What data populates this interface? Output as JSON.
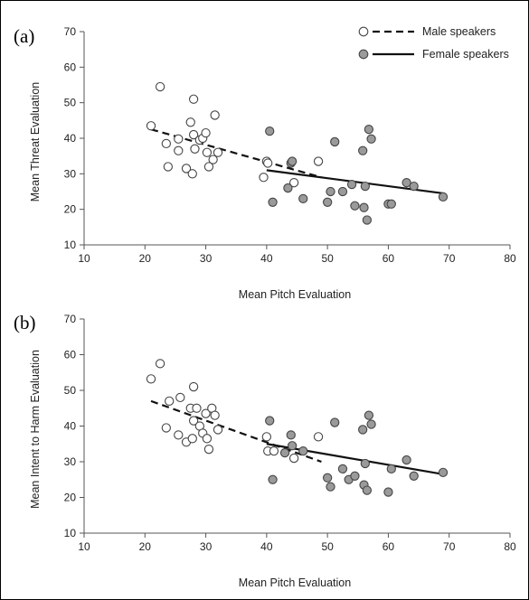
{
  "legend": {
    "male": "Male speakers",
    "female": "Female speakers",
    "colors": {
      "male_fill": "#ffffff",
      "female_fill": "#9a9a9a",
      "marker_stroke": "#444444",
      "line": "#111111"
    }
  },
  "chart_data": [
    {
      "type": "scatter",
      "panel_label": "(a)",
      "title": "",
      "xlabel": "Mean Pitch Evaluation",
      "ylabel": "Mean Threat Evaluation",
      "xlim": [
        10,
        80
      ],
      "ylim": [
        10,
        70
      ],
      "xticks": [
        "10",
        "20",
        "30",
        "40",
        "50",
        "60",
        "70",
        "80"
      ],
      "yticks": [
        "10",
        "20",
        "30",
        "40",
        "50",
        "60",
        "70"
      ],
      "grid": false,
      "legend_position": "top-right",
      "series": [
        {
          "name": "Male speakers",
          "marker": "open-circle",
          "points": [
            [
              21,
              43.5
            ],
            [
              22.5,
              54.5
            ],
            [
              23.5,
              38.5
            ],
            [
              23.8,
              32
            ],
            [
              25.5,
              36.5
            ],
            [
              25.5,
              39.8
            ],
            [
              26.8,
              31.5
            ],
            [
              27.5,
              44.5
            ],
            [
              27.8,
              30
            ],
            [
              28,
              51
            ],
            [
              28,
              41
            ],
            [
              28.2,
              37
            ],
            [
              29,
              39.5
            ],
            [
              29.5,
              40
            ],
            [
              30,
              41.5
            ],
            [
              30.2,
              36
            ],
            [
              30.5,
              32
            ],
            [
              31.2,
              34
            ],
            [
              31.5,
              46.5
            ],
            [
              32,
              36
            ],
            [
              39.5,
              29
            ],
            [
              40,
              33.5
            ],
            [
              40.2,
              33
            ],
            [
              44.5,
              27.5
            ],
            [
              48.5,
              33.5
            ]
          ],
          "trend": {
            "style": "dashed",
            "x": [
              21,
              49
            ],
            "y": [
              42.5,
              29
            ]
          }
        },
        {
          "name": "Female speakers",
          "marker": "filled-circle",
          "points": [
            [
              40.5,
              42
            ],
            [
              41,
              22
            ],
            [
              43.5,
              26
            ],
            [
              44,
              33
            ],
            [
              44.2,
              33.5
            ],
            [
              46,
              23
            ],
            [
              50,
              22
            ],
            [
              50.5,
              25
            ],
            [
              51.2,
              39
            ],
            [
              52.5,
              25
            ],
            [
              54,
              27
            ],
            [
              54.5,
              21
            ],
            [
              55.8,
              36.5
            ],
            [
              56,
              20.5
            ],
            [
              56.2,
              26.5
            ],
            [
              56.5,
              17
            ],
            [
              56.8,
              42.5
            ],
            [
              57.2,
              39.8
            ],
            [
              60,
              21.5
            ],
            [
              60.5,
              21.5
            ],
            [
              63,
              27.5
            ],
            [
              64.2,
              26.5
            ],
            [
              69,
              23.5
            ]
          ],
          "trend": {
            "style": "solid",
            "x": [
              40,
              69
            ],
            "y": [
              31,
              24.5
            ]
          }
        }
      ]
    },
    {
      "type": "scatter",
      "panel_label": "(b)",
      "title": "",
      "xlabel": "Mean Pitch Evaluation",
      "ylabel": "Mean Intent to Harm Evaluation",
      "xlim": [
        10,
        80
      ],
      "ylim": [
        10,
        70
      ],
      "xticks": [
        "10",
        "20",
        "30",
        "40",
        "50",
        "60",
        "70",
        "80"
      ],
      "yticks": [
        "10",
        "20",
        "30",
        "40",
        "50",
        "60",
        "70"
      ],
      "grid": false,
      "legend_position": "none",
      "series": [
        {
          "name": "Male speakers",
          "marker": "open-circle",
          "points": [
            [
              21,
              53.2
            ],
            [
              22.5,
              57.5
            ],
            [
              23.5,
              39.5
            ],
            [
              24,
              47
            ],
            [
              25.5,
              37.5
            ],
            [
              25.8,
              48
            ],
            [
              26.8,
              35.5
            ],
            [
              27.5,
              45
            ],
            [
              27.8,
              36.5
            ],
            [
              28,
              51
            ],
            [
              28,
              41.5
            ],
            [
              28.5,
              45
            ],
            [
              29,
              40
            ],
            [
              29.5,
              38
            ],
            [
              30,
              43.5
            ],
            [
              30.2,
              36.5
            ],
            [
              30.5,
              33.5
            ],
            [
              31,
              45
            ],
            [
              31.5,
              43
            ],
            [
              32,
              39
            ],
            [
              40,
              37
            ],
            [
              40.2,
              33
            ],
            [
              41.2,
              33
            ],
            [
              44.5,
              31
            ],
            [
              48.5,
              37
            ]
          ],
          "trend": {
            "style": "dashed",
            "x": [
              21,
              49
            ],
            "y": [
              47,
              30
            ]
          }
        },
        {
          "name": "Female speakers",
          "marker": "filled-circle",
          "points": [
            [
              40.5,
              41.5
            ],
            [
              41,
              25
            ],
            [
              43,
              32.5
            ],
            [
              44,
              37.5
            ],
            [
              44.2,
              34.5
            ],
            [
              46,
              33
            ],
            [
              50,
              25.5
            ],
            [
              50.5,
              23
            ],
            [
              51.2,
              41
            ],
            [
              52.5,
              28
            ],
            [
              53.5,
              25
            ],
            [
              54.5,
              26
            ],
            [
              55.8,
              39
            ],
            [
              56,
              23.5
            ],
            [
              56.2,
              29.5
            ],
            [
              56.5,
              22
            ],
            [
              56.8,
              43
            ],
            [
              57.2,
              40.5
            ],
            [
              60,
              21.5
            ],
            [
              60.5,
              28
            ],
            [
              63,
              30.5
            ],
            [
              64.2,
              26
            ],
            [
              69,
              27
            ]
          ],
          "trend": {
            "style": "solid",
            "x": [
              40,
              69
            ],
            "y": [
              35,
              26.5
            ]
          }
        }
      ]
    }
  ]
}
